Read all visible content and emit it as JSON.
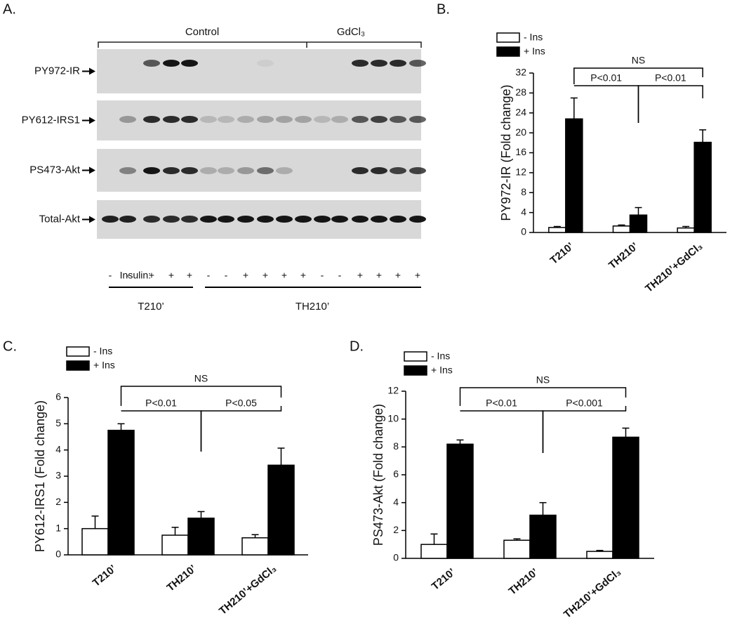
{
  "blot": {
    "label": "A.",
    "headers": [
      "Control",
      "GdCl₃"
    ],
    "rows": [
      "PY972-IR",
      "PY612-IRS1",
      "PS473-Akt",
      "Total-Akt"
    ],
    "insulin_label": "Insulin:",
    "insulin": [
      "-",
      "-",
      "+",
      "+",
      "+",
      "-",
      "-",
      "+",
      "+",
      "+",
      "+",
      "-",
      "-",
      "+",
      "+",
      "+",
      "+"
    ],
    "groups": [
      "T210’",
      "TH210’"
    ]
  },
  "chart_data": [
    {
      "type": "bar",
      "label": "B.",
      "y_label": "PY972-IR (Fold change)",
      "categories": [
        "T210’",
        "TH210’",
        "TH210’+GdCl₃"
      ],
      "series": [
        {
          "name": "- Ins",
          "color": "#ffffff",
          "values": [
            1.0,
            1.3,
            0.9
          ],
          "errors": [
            0.2,
            0.2,
            0.3
          ]
        },
        {
          "name": "+ Ins",
          "color": "#000000",
          "values": [
            22.8,
            3.5,
            18.1
          ],
          "errors": [
            4.2,
            1.5,
            2.5
          ]
        }
      ],
      "ylim": [
        0,
        32
      ],
      "yticks": [
        0,
        4,
        8,
        12,
        16,
        20,
        24,
        28,
        32
      ],
      "annotations": [
        "P<0.01",
        "P<0.01",
        "NS"
      ],
      "legend": "upper left"
    },
    {
      "type": "bar",
      "label": "C.",
      "y_label": "PY612-IRS1 (Fold change)",
      "categories": [
        "T210’",
        "TH210’",
        "TH210’+GdCl₃"
      ],
      "series": [
        {
          "name": "- Ins",
          "color": "#ffffff",
          "values": [
            1.0,
            0.75,
            0.65
          ],
          "errors": [
            0.48,
            0.3,
            0.12
          ]
        },
        {
          "name": "+ Ins",
          "color": "#000000",
          "values": [
            4.75,
            1.4,
            3.42
          ],
          "errors": [
            0.25,
            0.25,
            0.65
          ]
        }
      ],
      "ylim": [
        0,
        6
      ],
      "yticks": [
        0,
        1,
        2,
        3,
        4,
        5,
        6
      ],
      "annotations": [
        "P<0.01",
        "P<0.05",
        "NS"
      ],
      "legend": "upper left"
    },
    {
      "type": "bar",
      "label": "D.",
      "y_label": "PS473-Akt (Fold change)",
      "categories": [
        "T210’",
        "TH210’",
        "TH210’+GdCl₃"
      ],
      "series": [
        {
          "name": "- Ins",
          "color": "#ffffff",
          "values": [
            1.0,
            1.3,
            0.5
          ],
          "errors": [
            0.75,
            0.1,
            0.07
          ]
        },
        {
          "name": "+ Ins",
          "color": "#000000",
          "values": [
            8.2,
            3.1,
            8.7
          ],
          "errors": [
            0.3,
            0.9,
            0.65
          ]
        }
      ],
      "ylim": [
        0,
        12
      ],
      "yticks": [
        0,
        2,
        4,
        6,
        8,
        10,
        12
      ],
      "annotations": [
        "P<0.01",
        "P<0.001",
        "NS"
      ],
      "legend": "upper left"
    }
  ]
}
